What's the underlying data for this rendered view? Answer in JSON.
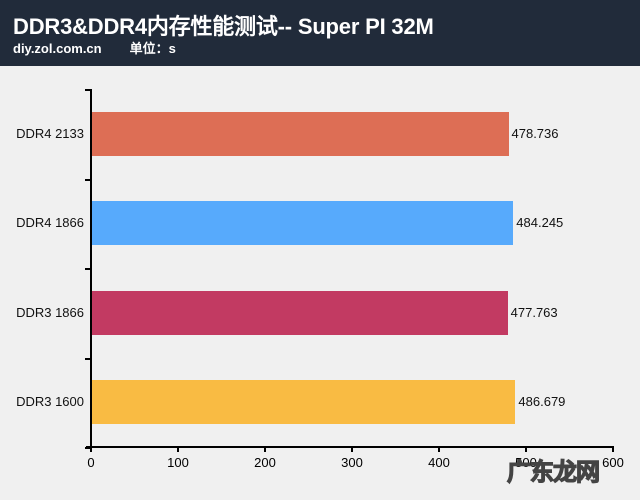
{
  "header": {
    "title": "DDR3&DDR4内存性能测试-- Super PI 32M",
    "site": "diy.zol.com.cn",
    "unit": "单位：s"
  },
  "watermark": "广东龙网",
  "chart_data": {
    "type": "bar",
    "orientation": "horizontal",
    "title": "DDR3&DDR4内存性能测试-- Super PI 32M",
    "subtitle": "diy.zol.com.cn 单位：s",
    "categories": [
      "DDR4 2133",
      "DDR4 1866",
      "DDR3 1866",
      "DDR3 1600"
    ],
    "values": [
      478.736,
      484.245,
      477.763,
      486.679
    ],
    "value_labels": [
      "478.736",
      "484.245",
      "477.763",
      "486.679"
    ],
    "colors": [
      "#dd6e55",
      "#57aafc",
      "#c23a62",
      "#f9bb43"
    ],
    "xlabel": "",
    "ylabel": "",
    "xlim": [
      0,
      600
    ],
    "xticks": [
      "0",
      "100",
      "200",
      "300",
      "400",
      "500",
      "600"
    ],
    "grid": false,
    "legend": "none"
  }
}
